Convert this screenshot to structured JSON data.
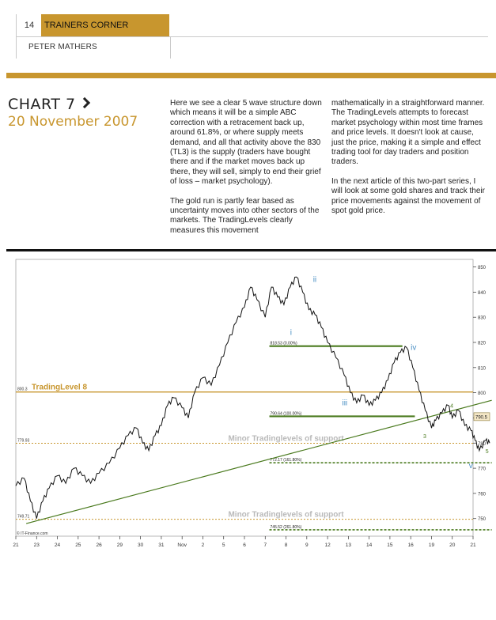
{
  "header": {
    "page_number": "14",
    "section": "TRAINERS CORNER",
    "author": "PETER MATHERS"
  },
  "article": {
    "chart_heading": "CHART 7",
    "chart_date": "20 November 2007",
    "paragraphs": [
      "Here we see a clear 5 wave structure down which means it will be a simple ABC correction with a retracement back up, around 61.8%, or where supply meets demand, and all that activity above the 830 (TL3) is the supply (traders have bought there and if the market moves back up there, they will sell, simply to end their grief of loss – market psychology).",
      "The gold run is partly fear based as uncertainty moves into other sectors of the markets. The TradingLevels clearly measures this movement mathematically in a straightforward manner. The TradingLevels attempts to forecast market psychology within most time frames and price levels. It doesn't look at cause, just the price, making it a simple and effect trading tool for day traders and position traders.",
      "In the next article of this two-part series, I will look at some gold shares and track their price movements against the movement of spot gold price."
    ],
    "col1_p1": "Here we see a clear 5 wave structure down which means it will be a simple ABC correction with a retracement back up, around 61.8%, or where supply meets demand, and all that activity above the 830 (TL3) is the supply (traders have bought there and if the market moves back up there, they will sell, simply to end their grief of loss – market psychology).",
    "col1_p2": "The gold run is partly fear based as uncertainty moves into other sectors of the markets. The TradingLevels clearly measures this movement",
    "col2_p1": "mathematically in a straightforward manner. The TradingLevels attempts to forecast market psychology within most time frames and price levels. It doesn't look at cause, just the price, making it a simple and effect trading tool for day traders and position traders.",
    "col2_p2": "In the next article of this two-part series, I will look at some gold shares and track their price movements against the movement of spot gold price."
  },
  "chart_data": {
    "type": "line",
    "ylim": [
      743,
      853
    ],
    "y_ticks": [
      750,
      760,
      770,
      780,
      790,
      800,
      810,
      820,
      830,
      840,
      850
    ],
    "x_tick_labels": [
      "21",
      "23",
      "24",
      "25",
      "26",
      "29",
      "30",
      "31",
      "Nov",
      "2",
      "5",
      "6",
      "7",
      "8",
      "9",
      "12",
      "13",
      "14",
      "15",
      "16",
      "19",
      "20",
      "21"
    ],
    "price_label": "790.5",
    "source_label": "© IT-Finance.com",
    "price_points": [
      [
        0,
        763
      ],
      [
        0.4,
        766
      ],
      [
        0.7,
        757
      ],
      [
        1,
        750
      ],
      [
        1.3,
        757
      ],
      [
        1.6,
        762
      ],
      [
        2,
        767
      ],
      [
        2.4,
        764
      ],
      [
        2.8,
        770
      ],
      [
        3.2,
        767
      ],
      [
        3.6,
        764
      ],
      [
        4,
        768
      ],
      [
        4.5,
        772
      ],
      [
        5,
        778
      ],
      [
        5.4,
        783
      ],
      [
        5.8,
        786
      ],
      [
        6.1,
        780
      ],
      [
        6.4,
        777
      ],
      [
        6.7,
        783
      ],
      [
        7,
        787
      ],
      [
        7.3,
        795
      ],
      [
        7.6,
        798
      ],
      [
        8,
        794
      ],
      [
        8.3,
        790
      ],
      [
        8.6,
        800
      ],
      [
        9,
        806
      ],
      [
        9.4,
        803
      ],
      [
        9.8,
        811
      ],
      [
        10.2,
        820
      ],
      [
        10.6,
        828
      ],
      [
        11,
        834
      ],
      [
        11.3,
        842
      ],
      [
        11.6,
        837
      ],
      [
        12,
        830
      ],
      [
        12.3,
        842
      ],
      [
        12.6,
        838
      ],
      [
        12.9,
        835
      ],
      [
        13.2,
        842
      ],
      [
        13.5,
        846
      ],
      [
        13.8,
        840
      ],
      [
        14.1,
        833
      ],
      [
        14.4,
        831
      ],
      [
        14.7,
        826
      ],
      [
        15,
        820
      ],
      [
        15.4,
        814
      ],
      [
        15.8,
        807
      ],
      [
        16.1,
        800
      ],
      [
        16.4,
        796
      ],
      [
        16.7,
        799
      ],
      [
        17,
        795
      ],
      [
        17.3,
        797
      ],
      [
        17.6,
        800
      ],
      [
        17.9,
        805
      ],
      [
        18.2,
        812
      ],
      [
        18.5,
        816
      ],
      [
        18.8,
        818
      ],
      [
        19.1,
        810
      ],
      [
        19.4,
        801
      ],
      [
        19.7,
        793
      ],
      [
        20,
        786
      ],
      [
        20.2,
        789
      ],
      [
        20.5,
        792
      ],
      [
        20.8,
        795
      ],
      [
        21,
        790
      ],
      [
        21.3,
        793
      ],
      [
        21.6,
        787
      ],
      [
        21.9,
        785
      ],
      [
        22.1,
        781
      ],
      [
        22.3,
        777
      ],
      [
        22.6,
        781
      ],
      [
        22.8,
        780
      ]
    ],
    "trading_levels": [
      {
        "label": "TradingLevel 8",
        "value": 800.3,
        "left_label": "800.3"
      },
      {
        "label": "Minor Tradinglevels of support",
        "value": 779.93,
        "left_label": "779.93"
      },
      {
        "label": "Minor Tradinglevels of support",
        "value": 749.71,
        "left_label": "749.71"
      }
    ],
    "fib_levels": [
      {
        "label": "818.53 (0.00%)",
        "value": 818.53
      },
      {
        "label": "790.64 (100.00%)",
        "value": 790.64
      },
      {
        "label": "772.17 (161.80%)",
        "value": 772.17
      },
      {
        "label": "745.52 (261.80%)",
        "value": 745.52
      }
    ],
    "wave_labels": [
      {
        "text": "i",
        "x": 13.2,
        "y": 823
      },
      {
        "text": "ii",
        "x": 14.3,
        "y": 844
      },
      {
        "text": "iii",
        "x": 15.7,
        "y": 795
      },
      {
        "text": "iv",
        "x": 19.0,
        "y": 817
      },
      {
        "text": "v",
        "x": 21.8,
        "y": 770
      },
      {
        "text": "3",
        "x": 19.6,
        "y": 782
      },
      {
        "text": "4",
        "x": 20.9,
        "y": 794
      },
      {
        "text": "5",
        "x": 22.6,
        "y": 776
      }
    ],
    "trendline": [
      [
        0.5,
        748
      ],
      [
        22.9,
        797
      ]
    ],
    "colors": {
      "accent": "#c8962e",
      "green": "#4a7a1e",
      "wave": "#4a8fc4",
      "price": "#111111"
    }
  }
}
